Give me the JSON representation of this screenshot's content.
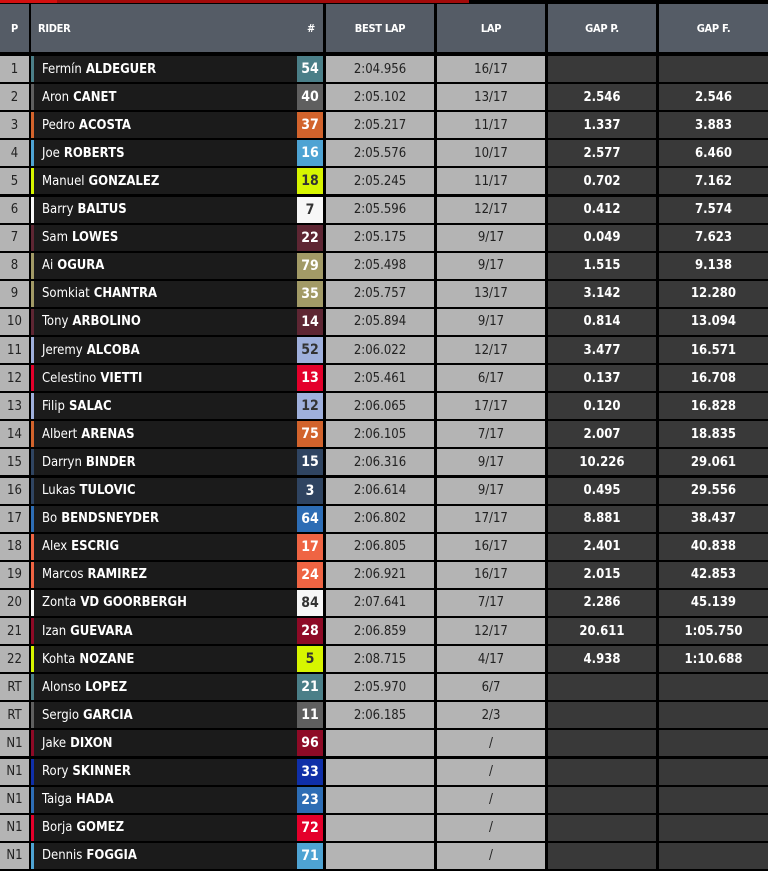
{
  "header": {
    "p": "P",
    "rider": "RIDER",
    "num": "#",
    "best_lap": "BEST LAP",
    "lap": "LAP",
    "gap_p": "GAP P.",
    "gap_f": "GAP F."
  },
  "colors": {
    "accent": "#a30a0a",
    "header_bg": "#555c66"
  },
  "rows": [
    {
      "pos": "1",
      "first": "Fermín",
      "last": "ALDEGUER",
      "num": "54",
      "color": "#4b7f88",
      "dark": false,
      "best": "2:04.956",
      "lap": "16/17",
      "gap_p": "",
      "gap_f": ""
    },
    {
      "pos": "2",
      "first": "Aron",
      "last": "CANET",
      "num": "40",
      "color": "#5f5f5f",
      "dark": false,
      "best": "2:05.102",
      "lap": "13/17",
      "gap_p": "2.546",
      "gap_f": "2.546"
    },
    {
      "pos": "3",
      "first": "Pedro",
      "last": "ACOSTA",
      "num": "37",
      "color": "#d2632c",
      "dark": false,
      "best": "2:05.217",
      "lap": "11/17",
      "gap_p": "1.337",
      "gap_f": "3.883"
    },
    {
      "pos": "4",
      "first": "Joe",
      "last": "ROBERTS",
      "num": "16",
      "color": "#4ea3d3",
      "dark": false,
      "best": "2:05.576",
      "lap": "10/17",
      "gap_p": "2.577",
      "gap_f": "6.460"
    },
    {
      "pos": "5",
      "first": "Manuel",
      "last": "GONZALEZ",
      "num": "18",
      "color": "#d7f500",
      "dark": true,
      "best": "2:05.245",
      "lap": "11/17",
      "gap_p": "0.702",
      "gap_f": "7.162"
    },
    {
      "pos": "6",
      "first": "Barry",
      "last": "BALTUS",
      "num": "7",
      "color": "#f7f7f7",
      "dark": true,
      "best": "2:05.596",
      "lap": "12/17",
      "gap_p": "0.412",
      "gap_f": "7.574"
    },
    {
      "pos": "7",
      "first": "Sam",
      "last": "LOWES",
      "num": "22",
      "color": "#5e2633",
      "dark": false,
      "best": "2:05.175",
      "lap": "9/17",
      "gap_p": "0.049",
      "gap_f": "7.623"
    },
    {
      "pos": "8",
      "first": "Ai",
      "last": "OGURA",
      "num": "79",
      "color": "#a29a66",
      "dark": false,
      "best": "2:05.498",
      "lap": "9/17",
      "gap_p": "1.515",
      "gap_f": "9.138"
    },
    {
      "pos": "9",
      "first": "Somkiat",
      "last": "CHANTRA",
      "num": "35",
      "color": "#a29a66",
      "dark": false,
      "best": "2:05.757",
      "lap": "13/17",
      "gap_p": "3.142",
      "gap_f": "12.280"
    },
    {
      "pos": "10",
      "first": "Tony",
      "last": "ARBOLINO",
      "num": "14",
      "color": "#5e2633",
      "dark": false,
      "best": "2:05.894",
      "lap": "9/17",
      "gap_p": "0.814",
      "gap_f": "13.094"
    },
    {
      "pos": "11",
      "first": "Jeremy",
      "last": "ALCOBA",
      "num": "52",
      "color": "#9fb0dc",
      "dark": true,
      "best": "2:06.022",
      "lap": "12/17",
      "gap_p": "3.477",
      "gap_f": "16.571"
    },
    {
      "pos": "12",
      "first": "Celestino",
      "last": "VIETTI",
      "num": "13",
      "color": "#e4002b",
      "dark": false,
      "best": "2:05.461",
      "lap": "6/17",
      "gap_p": "0.137",
      "gap_f": "16.708"
    },
    {
      "pos": "13",
      "first": "Filip",
      "last": "SALAC",
      "num": "12",
      "color": "#9fb0dc",
      "dark": true,
      "best": "2:06.065",
      "lap": "17/17",
      "gap_p": "0.120",
      "gap_f": "16.828"
    },
    {
      "pos": "14",
      "first": "Albert",
      "last": "ARENAS",
      "num": "75",
      "color": "#d2632c",
      "dark": false,
      "best": "2:06.105",
      "lap": "7/17",
      "gap_p": "2.007",
      "gap_f": "18.835"
    },
    {
      "pos": "15",
      "first": "Darryn",
      "last": "BINDER",
      "num": "15",
      "color": "#2f4461",
      "dark": false,
      "best": "2:06.316",
      "lap": "9/17",
      "gap_p": "10.226",
      "gap_f": "29.061"
    },
    {
      "pos": "16",
      "first": "Lukas",
      "last": "TULOVIC",
      "num": "3",
      "color": "#2f4461",
      "dark": false,
      "best": "2:06.614",
      "lap": "9/17",
      "gap_p": "0.495",
      "gap_f": "29.556"
    },
    {
      "pos": "17",
      "first": "Bo",
      "last": "BENDSNEYDER",
      "num": "64",
      "color": "#2d6db5",
      "dark": false,
      "best": "2:06.802",
      "lap": "17/17",
      "gap_p": "8.881",
      "gap_f": "38.437"
    },
    {
      "pos": "18",
      "first": "Alex",
      "last": "ESCRIG",
      "num": "17",
      "color": "#ef6443",
      "dark": false,
      "best": "2:06.805",
      "lap": "16/17",
      "gap_p": "2.401",
      "gap_f": "40.838"
    },
    {
      "pos": "19",
      "first": "Marcos",
      "last": "RAMIREZ",
      "num": "24",
      "color": "#ef6443",
      "dark": false,
      "best": "2:06.921",
      "lap": "16/17",
      "gap_p": "2.015",
      "gap_f": "42.853"
    },
    {
      "pos": "20",
      "first": "Zonta",
      "last": "VD GOORBERGH",
      "num": "84",
      "color": "#f7f7f7",
      "dark": true,
      "best": "2:07.641",
      "lap": "7/17",
      "gap_p": "2.286",
      "gap_f": "45.139"
    },
    {
      "pos": "21",
      "first": "Izan",
      "last": "GUEVARA",
      "num": "28",
      "color": "#8e0a26",
      "dark": false,
      "best": "2:06.859",
      "lap": "12/17",
      "gap_p": "20.611",
      "gap_f": "1:05.750"
    },
    {
      "pos": "22",
      "first": "Kohta",
      "last": "NOZANE",
      "num": "5",
      "color": "#d7f500",
      "dark": true,
      "best": "2:08.715",
      "lap": "4/17",
      "gap_p": "4.938",
      "gap_f": "1:10.688"
    },
    {
      "pos": "RT",
      "first": "Alonso",
      "last": "LOPEZ",
      "num": "21",
      "color": "#4b7f88",
      "dark": false,
      "best": "2:05.970",
      "lap": "6/7",
      "gap_p": "",
      "gap_f": ""
    },
    {
      "pos": "RT",
      "first": "Sergio",
      "last": "GARCIA",
      "num": "11",
      "color": "#5f5f5f",
      "dark": false,
      "best": "2:06.185",
      "lap": "2/3",
      "gap_p": "",
      "gap_f": ""
    },
    {
      "pos": "N1",
      "first": "Jake",
      "last": "DIXON",
      "num": "96",
      "color": "#8e0a26",
      "dark": false,
      "best": "",
      "lap": "/",
      "gap_p": "",
      "gap_f": ""
    },
    {
      "pos": "N1",
      "first": "Rory",
      "last": "SKINNER",
      "num": "33",
      "color": "#0f2fa8",
      "dark": false,
      "best": "",
      "lap": "/",
      "gap_p": "",
      "gap_f": ""
    },
    {
      "pos": "N1",
      "first": "Taiga",
      "last": "HADA",
      "num": "23",
      "color": "#2d6db5",
      "dark": false,
      "best": "",
      "lap": "/",
      "gap_p": "",
      "gap_f": ""
    },
    {
      "pos": "N1",
      "first": "Borja",
      "last": "GOMEZ",
      "num": "72",
      "color": "#e4002b",
      "dark": false,
      "best": "",
      "lap": "/",
      "gap_p": "",
      "gap_f": ""
    },
    {
      "pos": "N1",
      "first": "Dennis",
      "last": "FOGGIA",
      "num": "71",
      "color": "#4ea3d3",
      "dark": false,
      "best": "",
      "lap": "/",
      "gap_p": "",
      "gap_f": ""
    }
  ]
}
